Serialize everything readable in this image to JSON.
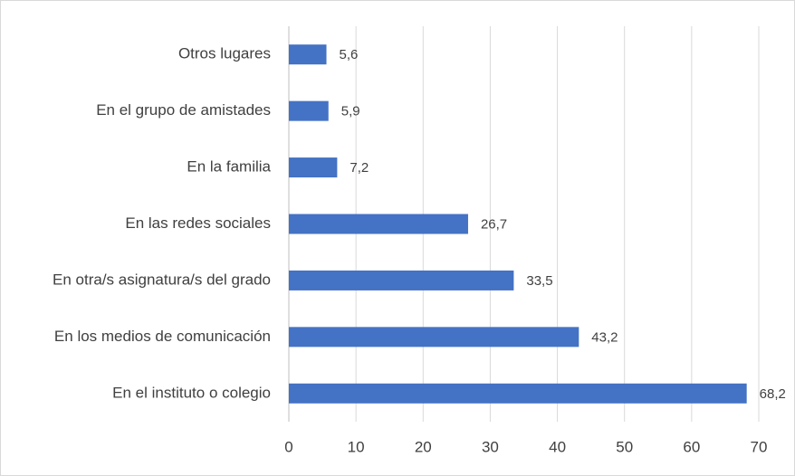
{
  "chart_data": {
    "type": "bar",
    "orientation": "horizontal",
    "categories": [
      "Otros lugares",
      "En el grupo de amistades",
      "En la familia",
      "En las redes sociales",
      "En otra/s asignatura/s del grado",
      "En los medios de comunicación",
      "En el instituto o colegio"
    ],
    "values": [
      5.6,
      5.9,
      7.2,
      26.7,
      33.5,
      43.2,
      68.2
    ],
    "value_labels": [
      "5,6",
      "5,9",
      "7,2",
      "26,7",
      "33,5",
      "43,2",
      "68,2"
    ],
    "color": "#4472c4",
    "xlim": [
      0,
      70
    ],
    "xticks": [
      0,
      10,
      20,
      30,
      40,
      50,
      60,
      70
    ],
    "grid": true
  }
}
